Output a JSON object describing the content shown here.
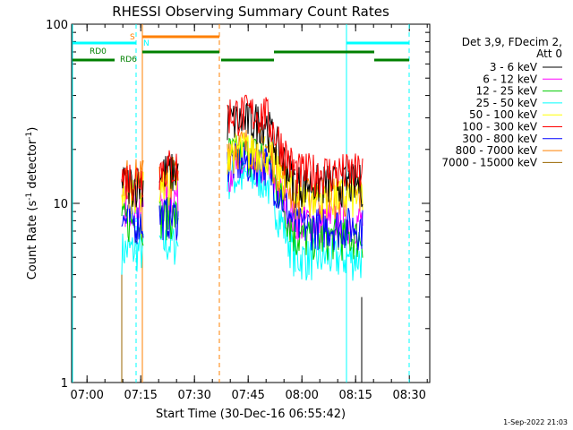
{
  "chart_data": {
    "type": "line",
    "title": "RHESSI Observing Summary Count Rates",
    "xlabel": "Start Time (30-Dec-16 06:55:42)",
    "ylabel": "Count Rate (s⁻¹ detector⁻¹)",
    "ylabel_parts": {
      "main": "Count Rate (s",
      "sup1": "-1",
      "mid": " detector",
      "sup2": "-1",
      "end": ")"
    },
    "x_ticks": [
      "07:00",
      "07:15",
      "07:30",
      "07:45",
      "08:00",
      "08:15",
      "08:30"
    ],
    "x_tick_minutes": [
      4.3,
      19.3,
      34.3,
      49.3,
      64.3,
      79.3,
      94.3
    ],
    "y_ticks": [
      "1",
      "10",
      "100"
    ],
    "y_scale": "log",
    "ylim": [
      1,
      100
    ],
    "xlim_minutes": [
      0,
      100
    ],
    "legend": {
      "header_line1": "Det 3,9, FDecim 2,",
      "header_line2": "Att 0",
      "position": "right"
    },
    "series": [
      {
        "name": "3 - 6 keV",
        "color": "#000000",
        "levels": [
          13,
          15,
          29,
          12,
          13
        ]
      },
      {
        "name": "6 - 12 keV",
        "color": "#ff00ff",
        "levels": [
          10,
          11,
          16,
          8,
          8
        ]
      },
      {
        "name": "12 - 25 keV",
        "color": "#00cc00",
        "levels": [
          8,
          8.5,
          19,
          6.5,
          6.5
        ]
      },
      {
        "name": "25 - 50 keV",
        "color": "#00ffff",
        "levels": [
          5.5,
          6,
          14,
          5,
          5
        ]
      },
      {
        "name": "50 - 100 keV",
        "color": "#ffff00",
        "levels": [
          12,
          13,
          20,
          11,
          11
        ]
      },
      {
        "name": "100 - 300 keV",
        "color": "#ff0000",
        "levels": [
          14,
          16,
          32,
          14,
          15
        ]
      },
      {
        "name": "300 - 800 keV",
        "color": "#0000ff",
        "levels": [
          8,
          8.5,
          17,
          7.5,
          7.5
        ]
      },
      {
        "name": "800 - 7000 keV",
        "color": "#ff8000",
        "levels": [
          14,
          14.5,
          21,
          11,
          11
        ]
      },
      {
        "name": "7000 - 15000 keV",
        "color": "#996600",
        "levels": [
          0,
          0,
          0,
          0,
          0
        ]
      }
    ],
    "flags": [
      {
        "name": "SAA",
        "label": "S",
        "color": "#ff8000"
      },
      {
        "name": "Night",
        "label": "N",
        "color": "#00ffff"
      },
      {
        "name": "RD0",
        "label": "RD0",
        "color": "#008000"
      },
      {
        "name": "RD6",
        "label": "RD6",
        "color": "#008000"
      }
    ],
    "timestamp": "1-Sep-2022 21:03"
  }
}
